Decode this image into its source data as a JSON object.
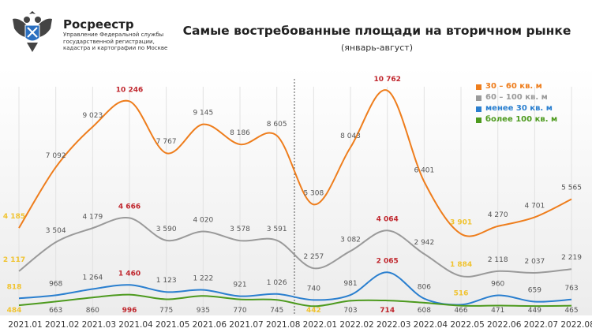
{
  "header": {
    "brand": "Росреестр",
    "brand_sub": "Управление Федеральной службы государственной регистрации, кадастра и картографии по Москве",
    "title": "Самые востребованные площади на вторичном рынке",
    "subtitle": "(январь-август)"
  },
  "colors": {
    "high": "#c0262d",
    "low": "#f0c330",
    "label": "#555555",
    "grid": "#e2e2e2"
  },
  "chart_data": {
    "type": "line",
    "title": "Самые востребованные площади на вторичном рынке",
    "subtitle": "(январь-август)",
    "categories": [
      "2021.01",
      "2021.02",
      "2021.03",
      "2021.04",
      "2021.05",
      "2021.06",
      "2021.07",
      "2021.08",
      "2022.01",
      "2022.02",
      "2022.03",
      "2022.04",
      "2022.05",
      "2022.06",
      "2022.07",
      "2022.08"
    ],
    "legend_position": "top-right",
    "grid": "vertical",
    "series": [
      {
        "name": "30 – 60 кв. м",
        "color": "#ee7d1c",
        "values": [
          4185,
          7092,
          9023,
          10246,
          7767,
          9145,
          8186,
          8605,
          5308,
          8043,
          10762,
          6401,
          3901,
          4270,
          4701,
          5565
        ],
        "high_indices": [
          3,
          10
        ],
        "low_indices": [
          0,
          12
        ]
      },
      {
        "name": "60 – 100 кв. м",
        "color": "#9a9a9a",
        "values": [
          2117,
          3504,
          4179,
          4666,
          3590,
          4020,
          3578,
          3591,
          2257,
          3082,
          4064,
          2942,
          1884,
          2118,
          2037,
          2219
        ],
        "high_indices": [
          3,
          10
        ],
        "low_indices": [
          0,
          12
        ]
      },
      {
        "name": "менее 30 кв. м",
        "color": "#2a7fcf",
        "values": [
          818,
          968,
          1264,
          1460,
          1123,
          1222,
          921,
          1026,
          740,
          981,
          2065,
          806,
          516,
          960,
          659,
          763
        ],
        "high_indices": [
          3,
          10
        ],
        "low_indices": [
          0,
          12
        ]
      },
      {
        "name": "более 100 кв. м",
        "color": "#4d9a1e",
        "values": [
          484,
          663,
          860,
          996,
          775,
          935,
          770,
          745,
          442,
          703,
          714,
          608,
          466,
          471,
          449,
          465
        ],
        "high_indices": [
          3,
          10
        ],
        "low_indices": [
          0,
          8
        ]
      }
    ]
  }
}
